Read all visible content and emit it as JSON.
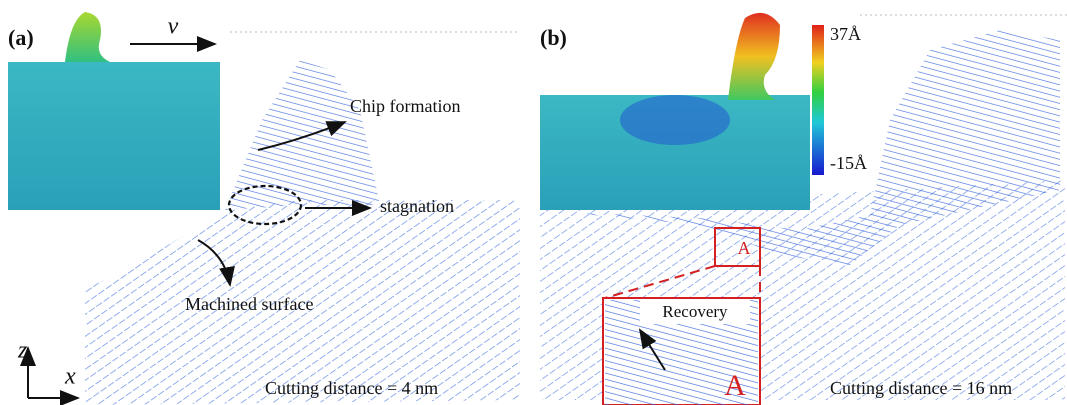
{
  "panels": [
    {
      "label": "(a)",
      "velocity": "v",
      "annotations": [
        "Chip formation",
        "stagnation",
        "Machined surface"
      ],
      "axes": {
        "z": "z",
        "x": "x"
      },
      "caption": "Cutting distance = 4 nm"
    },
    {
      "label": "(b)",
      "colorbar": {
        "max": "37Å",
        "min": "-15Å"
      },
      "region_label": "A",
      "inset_label": "Recovery",
      "inset_region": "A",
      "caption": "Cutting distance = 16 nm"
    }
  ]
}
